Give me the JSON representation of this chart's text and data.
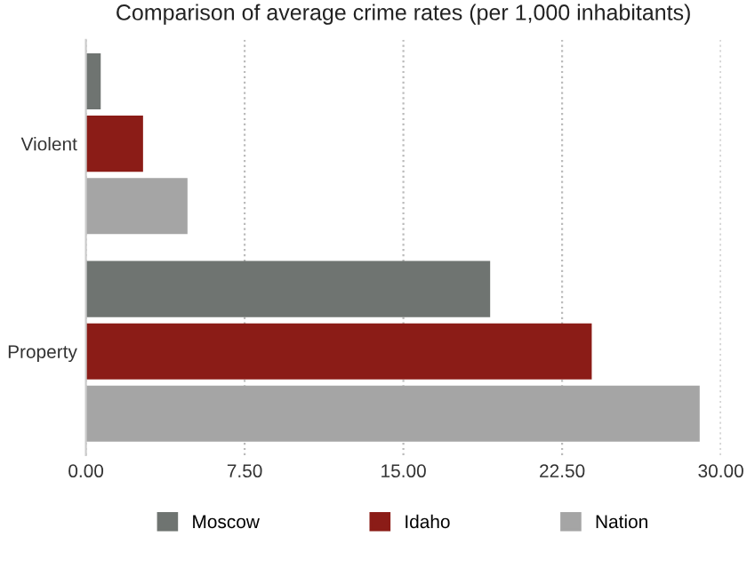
{
  "chart_data": {
    "type": "bar",
    "orientation": "horizontal",
    "title": "Comparison of average crime rates (per 1,000 inhabitants)",
    "categories": [
      "Violent",
      "Property"
    ],
    "series": [
      {
        "name": "Moscow",
        "color": "#6f7471",
        "values": [
          0.7,
          19.1
        ]
      },
      {
        "name": "Idaho",
        "color": "#8b1c17",
        "values": [
          2.7,
          23.9
        ]
      },
      {
        "name": "Nation",
        "color": "#a5a5a5",
        "values": [
          4.8,
          29.0
        ]
      }
    ],
    "xlim": [
      0,
      30
    ],
    "xticks": [
      {
        "value": 0,
        "label": "0.00"
      },
      {
        "value": 7.5,
        "label": "7.50"
      },
      {
        "value": 15,
        "label": "15.00"
      },
      {
        "value": 22.5,
        "label": "22.50"
      },
      {
        "value": 30,
        "label": "30.00"
      }
    ],
    "grid": "x",
    "legend": "bottom"
  }
}
